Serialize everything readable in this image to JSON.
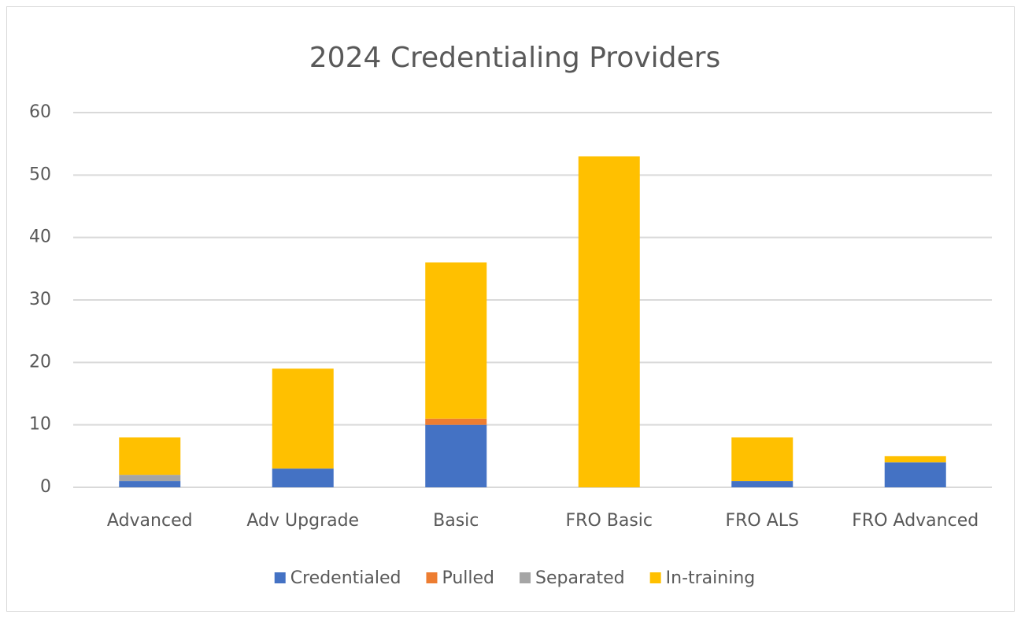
{
  "chart_data": {
    "type": "stacked_bar",
    "title": "2024 Credentialing Providers",
    "categories": [
      "Advanced",
      "Adv Upgrade",
      "Basic",
      "FRO Basic",
      "FRO ALS",
      "FRO Advanced"
    ],
    "series": [
      {
        "name": "Credentialed",
        "color": "#4472c4",
        "values": [
          1,
          3,
          10,
          0,
          1,
          4
        ]
      },
      {
        "name": "Pulled",
        "color": "#ed7d31",
        "values": [
          0,
          0,
          1,
          0,
          0,
          0
        ]
      },
      {
        "name": "Separated",
        "color": "#a5a5a5",
        "values": [
          1,
          0,
          0,
          0,
          0,
          0
        ]
      },
      {
        "name": "In-training",
        "color": "#ffc000",
        "values": [
          6,
          16,
          25,
          53,
          7,
          1
        ]
      }
    ],
    "ylim": [
      0,
      60
    ],
    "yticks": [
      0,
      10,
      20,
      30,
      40,
      50,
      60
    ],
    "grid": true,
    "legend": "bottom"
  }
}
